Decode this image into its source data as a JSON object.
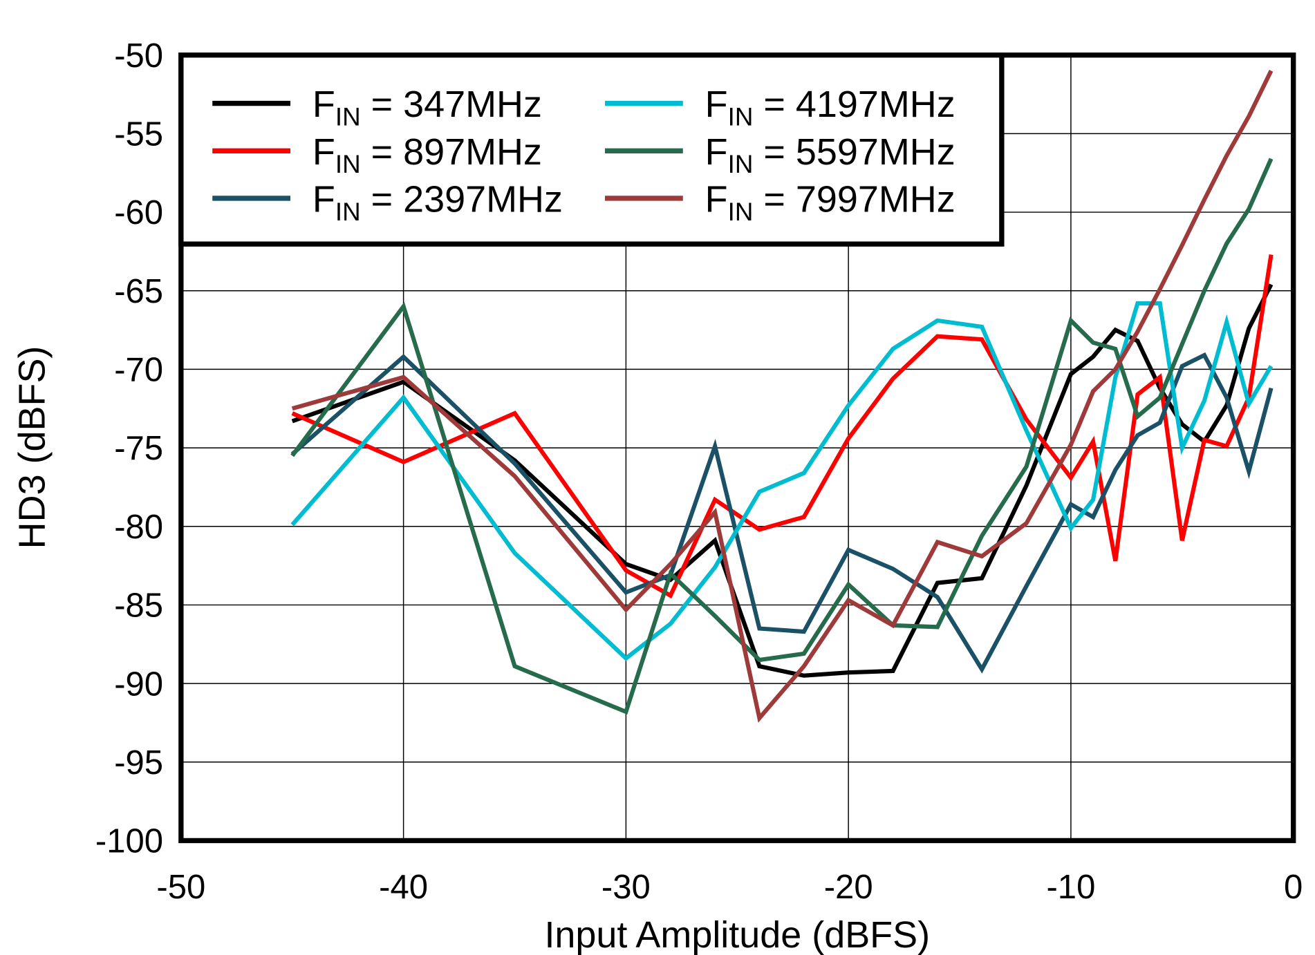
{
  "chart_data": {
    "type": "line",
    "title": "",
    "xlabel": "Input Amplitude  (dBFS)",
    "ylabel": "HD3 (dBFS)",
    "xlim": [
      -50,
      0
    ],
    "ylim": [
      -100,
      -50
    ],
    "xticks": [
      "-50",
      "-40",
      "-30",
      "-20",
      "-10",
      "0"
    ],
    "yticks": [
      "-50",
      "-55",
      "-60",
      "-65",
      "-70",
      "-75",
      "-80",
      "-85",
      "-90",
      "-95",
      "-100"
    ],
    "grid": true,
    "legend_position": "top-left",
    "x": [
      -45,
      -40,
      -35,
      -30,
      -28,
      -26,
      -24,
      -22,
      -20,
      -18,
      -16,
      -14,
      -12,
      -10,
      -9,
      -8,
      -7,
      -6,
      -5,
      -4,
      -3,
      -2,
      -1
    ],
    "series": [
      {
        "name": "F",
        "sub": "IN",
        "rest": " = 347MHz",
        "color": "#000000",
        "values": [
          -73.3,
          -70.8,
          -75.8,
          -82.4,
          -83.4,
          -80.9,
          -88.9,
          -89.5,
          -89.3,
          -89.2,
          -83.6,
          -83.3,
          -77.4,
          -70.3,
          -69.2,
          -67.5,
          -68.2,
          -71.2,
          -73.5,
          -74.6,
          -72.3,
          -67.4,
          -64.6
        ]
      },
      {
        "name": "F",
        "sub": "IN",
        "rest": " = 897MHz",
        "color": "#ff0000",
        "values": [
          -72.8,
          -75.9,
          -72.8,
          -82.8,
          -84.4,
          -78.3,
          -80.2,
          -79.4,
          -74.4,
          -70.6,
          -67.9,
          -68.1,
          -73.2,
          -76.9,
          -74.6,
          -82.2,
          -71.6,
          -70.5,
          -80.9,
          -74.5,
          -74.9,
          -71.8,
          -62.7
        ]
      },
      {
        "name": "F",
        "sub": "IN",
        "rest": " = 2397MHz",
        "color": "#1a5166",
        "values": [
          -75.4,
          -69.2,
          -76.0,
          -84.2,
          -83.1,
          -74.9,
          -86.5,
          -86.7,
          -81.5,
          -82.7,
          -84.5,
          -89.1,
          -83.8,
          -78.6,
          -79.4,
          -76.4,
          -74.2,
          -73.4,
          -69.8,
          -69.1,
          -71.8,
          -76.5,
          -71.2
        ]
      },
      {
        "name": "F",
        "sub": "IN",
        "rest": " = 4197MHz",
        "color": "#00bcd0",
        "values": [
          -79.9,
          -71.8,
          -81.7,
          -88.4,
          -86.2,
          -82.6,
          -77.8,
          -76.6,
          -72.3,
          -68.7,
          -66.9,
          -67.3,
          -73.9,
          -80.1,
          -78.3,
          -70.5,
          -65.8,
          -65.8,
          -75.0,
          -72.0,
          -67.0,
          -72.2,
          -69.8
        ]
      },
      {
        "name": "F",
        "sub": "IN",
        "rest": " = 5597MHz",
        "color": "#256b4c",
        "values": [
          -75.5,
          -66.0,
          -88.9,
          -91.8,
          -83.0,
          -85.7,
          -88.5,
          -88.1,
          -83.7,
          -86.3,
          -86.4,
          -80.6,
          -76.2,
          -66.9,
          -68.3,
          -68.7,
          -73.0,
          -71.8,
          -68.4,
          -65.0,
          -62.0,
          -59.8,
          -56.6
        ]
      },
      {
        "name": "F",
        "sub": "IN",
        "rest": " = 7997MHz",
        "color": "#9e3a3a",
        "values": [
          -72.5,
          -70.5,
          -76.8,
          -85.3,
          -82.4,
          -79.1,
          -92.2,
          -88.9,
          -84.7,
          -86.3,
          -81.0,
          -81.9,
          -79.8,
          -74.8,
          -71.4,
          -70.0,
          -67.6,
          -64.9,
          -62.1,
          -59.2,
          -56.4,
          -53.9,
          -51.0
        ]
      }
    ]
  }
}
